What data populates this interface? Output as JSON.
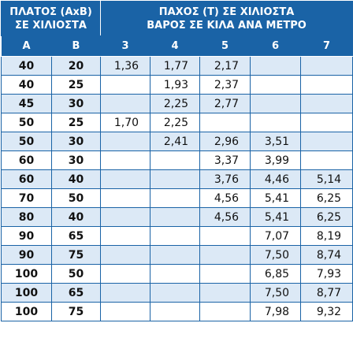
{
  "header": {
    "left_line1": "ΠΛΑΤΟΣ (AxB)",
    "left_line2": "ΣΕ ΧΙΛΙΟΣΤΑ",
    "right_line1": "ΠΑΧΟΣ (T) ΣΕ ΧΙΛΙΟΣΤΑ",
    "right_line2": "ΒΑΡΟΣ ΣΕ ΚΙΛΑ ΑΝΑ ΜΕΤΡΟ",
    "columns": [
      "A",
      "B",
      "3",
      "4",
      "5",
      "6",
      "7"
    ]
  },
  "rows": [
    {
      "a": "40",
      "b": "20",
      "t": [
        "1,36",
        "1,77",
        "2,17",
        "",
        ""
      ]
    },
    {
      "a": "40",
      "b": "25",
      "t": [
        "",
        "1,93",
        "2,37",
        "",
        ""
      ]
    },
    {
      "a": "45",
      "b": "30",
      "t": [
        "",
        "2,25",
        "2,77",
        "",
        ""
      ]
    },
    {
      "a": "50",
      "b": "25",
      "t": [
        "1,70",
        "2,25",
        "",
        "",
        ""
      ]
    },
    {
      "a": "50",
      "b": "30",
      "t": [
        "",
        "2,41",
        "2,96",
        "3,51",
        ""
      ]
    },
    {
      "a": "60",
      "b": "30",
      "t": [
        "",
        "",
        "3,37",
        "3,99",
        ""
      ]
    },
    {
      "a": "60",
      "b": "40",
      "t": [
        "",
        "",
        "3,76",
        "4,46",
        "5,14"
      ]
    },
    {
      "a": "70",
      "b": "50",
      "t": [
        "",
        "",
        "4,56",
        "5,41",
        "6,25"
      ]
    },
    {
      "a": "80",
      "b": "40",
      "t": [
        "",
        "",
        "4,56",
        "5,41",
        "6,25"
      ]
    },
    {
      "a": "90",
      "b": "65",
      "t": [
        "",
        "",
        "",
        "7,07",
        "8,19"
      ]
    },
    {
      "a": "90",
      "b": "75",
      "t": [
        "",
        "",
        "",
        "7,50",
        "8,74"
      ]
    },
    {
      "a": "100",
      "b": "50",
      "t": [
        "",
        "",
        "",
        "6,85",
        "7,93"
      ]
    },
    {
      "a": "100",
      "b": "65",
      "t": [
        "",
        "",
        "",
        "7,50",
        "8,77"
      ]
    },
    {
      "a": "100",
      "b": "75",
      "t": [
        "",
        "",
        "",
        "7,98",
        "9,32"
      ]
    }
  ]
}
